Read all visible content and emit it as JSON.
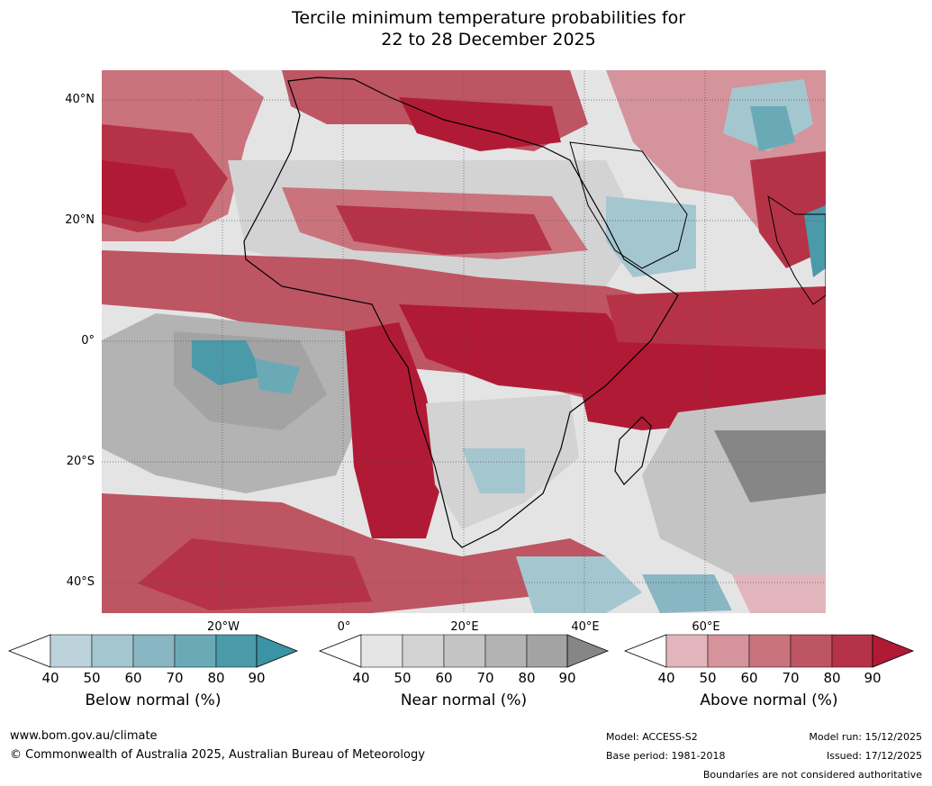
{
  "title": {
    "line1": "Tercile minimum temperature probabilities for",
    "line2": "22 to 28 December 2025"
  },
  "map": {
    "lat_labels": [
      "40°N",
      "20°N",
      "0°",
      "20°S",
      "40°S"
    ],
    "lon_labels": [
      "20°W",
      "0°",
      "20°E",
      "40°E",
      "60°E"
    ]
  },
  "legends": [
    {
      "title": "Below normal (%)",
      "ticks": [
        "40",
        "50",
        "60",
        "70",
        "80",
        "90"
      ],
      "colors": [
        "#bcd3dc",
        "#a4c6cf",
        "#88b6c2",
        "#6aaab7",
        "#4b9aaa",
        "#3a94a6"
      ]
    },
    {
      "title": "Near normal (%)",
      "ticks": [
        "40",
        "50",
        "60",
        "70",
        "80",
        "90"
      ],
      "colors": [
        "#e4e4e4",
        "#d3d3d3",
        "#c4c4c4",
        "#b3b3b3",
        "#a3a3a3",
        "#868686"
      ]
    },
    {
      "title": "Above normal (%)",
      "ticks": [
        "40",
        "50",
        "60",
        "70",
        "80",
        "90"
      ],
      "colors": [
        "#e2b5bc",
        "#d5939c",
        "#ca737d",
        "#be5563",
        "#b63347",
        "#b11a35"
      ]
    }
  ],
  "footer": {
    "website": "www.bom.gov.au/climate",
    "copyright": "© Commonwealth of Australia 2025, Australian Bureau of Meteorology",
    "model": "Model: ACCESS-S2",
    "base_period": "Base period: 1981-2018",
    "model_run": "Model run: 15/12/2025",
    "issued": "Issued: 17/12/2025",
    "disclaimer": "Boundaries are not considered authoritative"
  }
}
